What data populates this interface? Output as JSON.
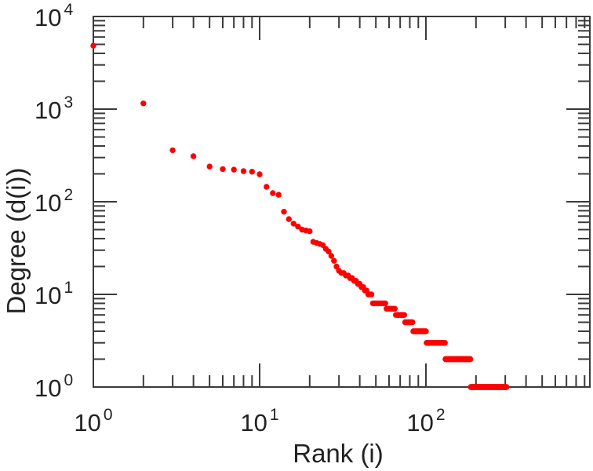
{
  "figure": {
    "background": "#ffffff",
    "axis_color": "#3a3a3a",
    "text_color": "#222222"
  },
  "chart_data": {
    "type": "scatter",
    "title": "",
    "xlabel": "Rank (i)",
    "ylabel": "Degree (d(i))",
    "xscale": "log",
    "yscale": "log",
    "xlim": [
      1,
      970
    ],
    "ylim": [
      1,
      10000
    ],
    "grid": false,
    "legend": "none",
    "tick_base": "10",
    "x_tick_exponents": [
      0,
      1,
      2
    ],
    "y_tick_exponents": [
      0,
      1,
      2,
      3,
      4
    ],
    "marker_color": "#ff0000",
    "marker_radius": 3.7,
    "points_explicit": [
      [
        1,
        4850
      ],
      [
        2,
        1150
      ],
      [
        3,
        360
      ],
      [
        4,
        310
      ],
      [
        5,
        240
      ],
      [
        6,
        225
      ],
      [
        7,
        222
      ],
      [
        8,
        214
      ],
      [
        9,
        211
      ],
      [
        10,
        198
      ],
      [
        11,
        145
      ],
      [
        12,
        124
      ],
      [
        13,
        119
      ],
      [
        14,
        78
      ],
      [
        15,
        65
      ],
      [
        16,
        58
      ],
      [
        17,
        54
      ],
      [
        18,
        50
      ],
      [
        19,
        49
      ],
      [
        20,
        48
      ],
      [
        21,
        37
      ],
      [
        22,
        36
      ],
      [
        23,
        35
      ],
      [
        24,
        34
      ],
      [
        25,
        31
      ],
      [
        26,
        29
      ],
      [
        27,
        26
      ],
      [
        28,
        23
      ],
      [
        29,
        20
      ],
      [
        30,
        18
      ],
      [
        31,
        17
      ],
      [
        32,
        17
      ],
      [
        33,
        16
      ],
      [
        34,
        16
      ],
      [
        35,
        15
      ],
      [
        36,
        15
      ],
      [
        37,
        14
      ],
      [
        38,
        14
      ],
      [
        39,
        13
      ],
      [
        40,
        13
      ],
      [
        41,
        12
      ],
      [
        42,
        12
      ],
      [
        43,
        11
      ],
      [
        44,
        11
      ],
      [
        45,
        10
      ],
      [
        46,
        10
      ],
      [
        47,
        10
      ]
    ],
    "runs_rank_from_to_degree": [
      [
        48,
        57,
        8
      ],
      [
        58,
        65,
        7
      ],
      [
        66,
        74,
        6
      ],
      [
        75,
        83,
        5
      ],
      [
        84,
        100,
        4
      ],
      [
        101,
        130,
        3
      ],
      [
        131,
        185,
        2
      ],
      [
        186,
        305,
        1
      ]
    ]
  }
}
